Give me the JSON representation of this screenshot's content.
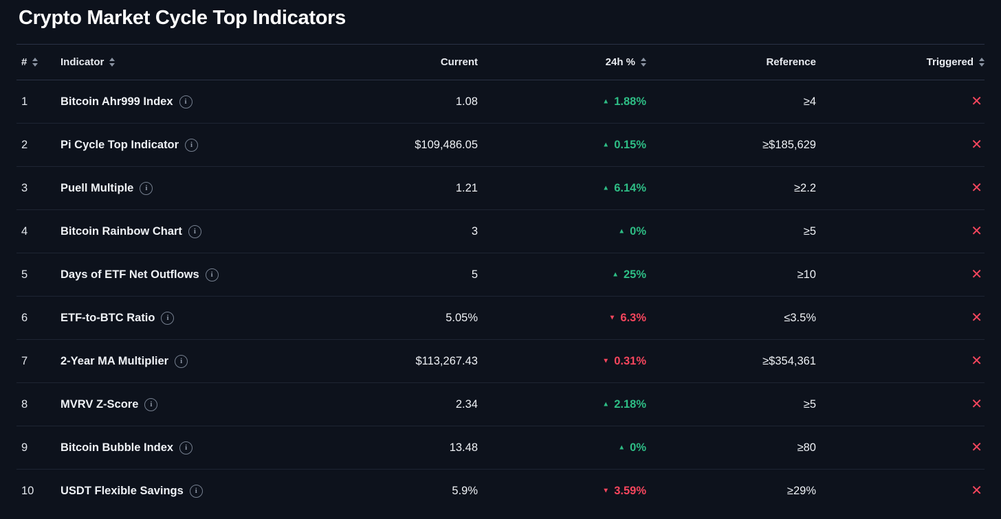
{
  "page": {
    "title": "Crypto Market Cycle Top Indicators"
  },
  "colors": {
    "up": "#2ebd85",
    "down": "#f6465d",
    "background": "#0d121c",
    "text": "#eef1f5",
    "muted": "#8a93a2"
  },
  "icons": {
    "info": "i",
    "up_arrow": "▲",
    "down_arrow": "▼",
    "not_triggered": "✕",
    "sort": "sort-arrows"
  },
  "table": {
    "columns": [
      {
        "key": "rank",
        "label": "#",
        "sortable": true,
        "align": "left"
      },
      {
        "key": "indicator",
        "label": "Indicator",
        "sortable": true,
        "align": "left"
      },
      {
        "key": "current",
        "label": "Current",
        "sortable": false,
        "align": "right"
      },
      {
        "key": "change24h",
        "label": "24h %",
        "sortable": true,
        "align": "right"
      },
      {
        "key": "reference",
        "label": "Reference",
        "sortable": false,
        "align": "right"
      },
      {
        "key": "triggered",
        "label": "Triggered",
        "sortable": true,
        "align": "right"
      }
    ],
    "rows": [
      {
        "rank": "1",
        "indicator": "Bitcoin Ahr999 Index",
        "current": "1.08",
        "change": "1.88%",
        "direction": "up",
        "reference": "≥4",
        "triggered": false
      },
      {
        "rank": "2",
        "indicator": "Pi Cycle Top Indicator",
        "current": "$109,486.05",
        "change": "0.15%",
        "direction": "up",
        "reference": "≥$185,629",
        "triggered": false
      },
      {
        "rank": "3",
        "indicator": "Puell Multiple",
        "current": "1.21",
        "change": "6.14%",
        "direction": "up",
        "reference": "≥2.2",
        "triggered": false
      },
      {
        "rank": "4",
        "indicator": "Bitcoin Rainbow Chart",
        "current": "3",
        "change": "0%",
        "direction": "up",
        "reference": "≥5",
        "triggered": false
      },
      {
        "rank": "5",
        "indicator": "Days of ETF Net Outflows",
        "current": "5",
        "change": "25%",
        "direction": "up",
        "reference": "≥10",
        "triggered": false
      },
      {
        "rank": "6",
        "indicator": "ETF-to-BTC Ratio",
        "current": "5.05%",
        "change": "6.3%",
        "direction": "down",
        "reference": "≤3.5%",
        "triggered": false
      },
      {
        "rank": "7",
        "indicator": "2-Year MA Multiplier",
        "current": "$113,267.43",
        "change": "0.31%",
        "direction": "down",
        "reference": "≥$354,361",
        "triggered": false
      },
      {
        "rank": "8",
        "indicator": "MVRV Z-Score",
        "current": "2.34",
        "change": "2.18%",
        "direction": "up",
        "reference": "≥5",
        "triggered": false
      },
      {
        "rank": "9",
        "indicator": "Bitcoin Bubble Index",
        "current": "13.48",
        "change": "0%",
        "direction": "up",
        "reference": "≥80",
        "triggered": false
      },
      {
        "rank": "10",
        "indicator": "USDT Flexible Savings",
        "current": "5.9%",
        "change": "3.59%",
        "direction": "down",
        "reference": "≥29%",
        "triggered": false
      }
    ]
  }
}
